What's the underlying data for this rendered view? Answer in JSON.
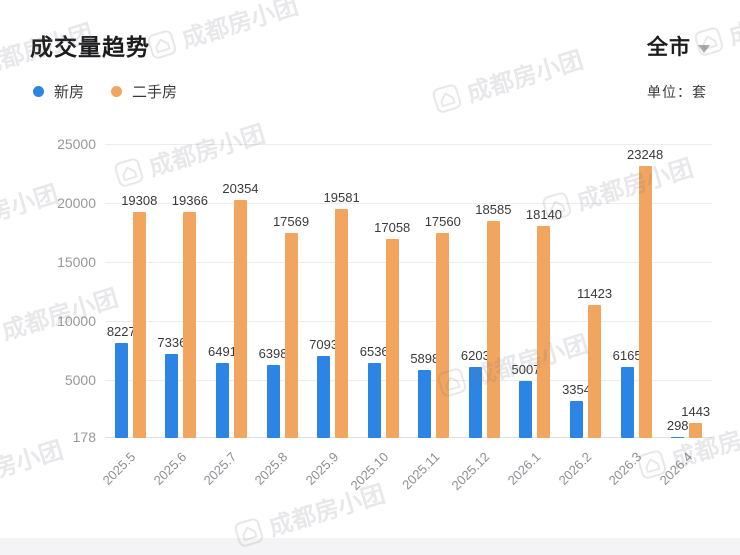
{
  "header": {
    "title": "成交量趋势",
    "region": "全市",
    "unit_label": "单位：套"
  },
  "legend": [
    {
      "label": "新房",
      "color": "#2C85E4"
    },
    {
      "label": "二手房",
      "color": "#F2A55F"
    }
  ],
  "watermark": {
    "text": "成都房小团",
    "icon": "house-logo"
  },
  "chart_data": {
    "type": "bar",
    "title": "成交量趋势",
    "xlabel": "",
    "ylabel": "套",
    "categories": [
      "2025.5",
      "2025.6",
      "2025.7",
      "2025.8",
      "2025.9",
      "2025.10",
      "2025.11",
      "2025.12",
      "2026.1",
      "2026.2",
      "2026.3",
      "2026.4"
    ],
    "series": [
      {
        "name": "新房",
        "color": "#2C85E4",
        "values": [
          8227,
          7336,
          6491,
          6398,
          7093,
          6536,
          5898,
          6203,
          5007,
          3354,
          6165,
          298
        ]
      },
      {
        "name": "二手房",
        "color": "#F2A55F",
        "values": [
          19308,
          19366,
          20354,
          17569,
          19581,
          17058,
          17560,
          18585,
          18140,
          11423,
          23248,
          1443
        ]
      }
    ],
    "y_ticks": [
      178,
      5000,
      10000,
      15000,
      20000,
      25000
    ],
    "ylim": [
      178,
      25000
    ],
    "grid": true,
    "value_labels": true,
    "legend_position": "top-left"
  }
}
